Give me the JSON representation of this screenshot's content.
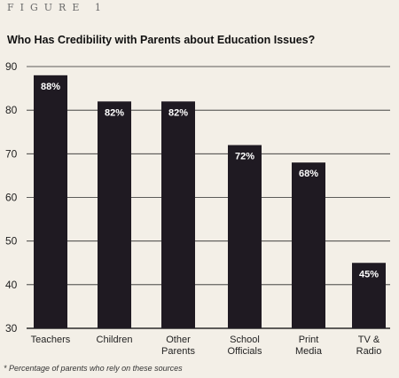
{
  "figure": {
    "label": "FIGURE 1"
  },
  "chart_data": {
    "type": "bar",
    "title": "Who Has Credibility with Parents about Education Issues?",
    "categories": [
      [
        "Teachers"
      ],
      [
        "Children"
      ],
      [
        "Other",
        "Parents"
      ],
      [
        "School",
        "Officials"
      ],
      [
        "Print",
        "Media"
      ],
      [
        "TV &",
        "Radio"
      ]
    ],
    "values": [
      88,
      82,
      82,
      72,
      68,
      45
    ],
    "data_labels": [
      "88%",
      "82%",
      "82%",
      "72%",
      "68%",
      "45%"
    ],
    "ylim": [
      30,
      90
    ],
    "yticks": [
      "30",
      "40",
      "50",
      "60",
      "70",
      "80",
      "90"
    ],
    "grid": true,
    "bar_color": "#1f1a22",
    "footnote": "* Percentage of parents who rely on these sources"
  }
}
